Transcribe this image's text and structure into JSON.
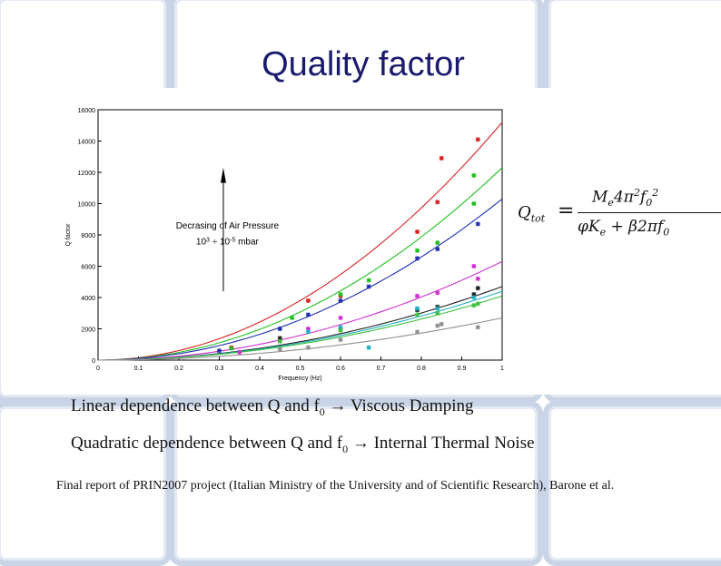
{
  "slide": {
    "title": "Quality factor",
    "formula": {
      "lhs": "Q",
      "lhs_sub": "tot",
      "numerator": "M",
      "numerator_html": "M_e 4π² f_0²",
      "denominator": "φK_e + β2πf_0"
    },
    "caption1": {
      "text": "Linear dependence between Q and f",
      "sub": "0",
      "tail": " → Viscous Damping"
    },
    "caption2": {
      "text": "Quadratic dependence between Q and f",
      "sub": "0",
      "tail": " → Internal Thermal Noise"
    },
    "reference": "Final report of PRIN2007 project (Italian Ministry of the University and of Scientific Research), Barone et al."
  },
  "colors": {
    "title": "#1a1a6e",
    "tile_border": "#c9d4e6"
  },
  "chart_data": {
    "type": "scatter",
    "xlabel": "Frequency (Hz)",
    "ylabel": "Q factor",
    "xlim": [
      0,
      1
    ],
    "ylim": [
      0,
      16000
    ],
    "xticks": [
      "0",
      "0.1",
      "0.2",
      "0.3",
      "0.4",
      "0.5",
      "0.6",
      "0.7",
      "0.8",
      "0.9",
      "1"
    ],
    "yticks": [
      "0",
      "2000",
      "4000",
      "6000",
      "8000",
      "10000",
      "12000",
      "14000",
      "16000"
    ],
    "grid": false,
    "annotation": {
      "line1": "Decrasing of Air Pressure",
      "line2_base": "10",
      "line2_exp1": "3",
      "line2_mid": " ÷ 10",
      "line2_exp2": "-5",
      "line2_tail": " mbar"
    },
    "series": [
      {
        "color": "#d62020",
        "curve_at_1": 15200,
        "points": [
          [
            0.33,
            800
          ],
          [
            0.52,
            3800
          ],
          [
            0.6,
            4100
          ],
          [
            0.79,
            8200
          ],
          [
            0.84,
            10100
          ],
          [
            0.85,
            12900
          ],
          [
            0.94,
            14100
          ]
        ]
      },
      {
        "color": "#20c020",
        "curve_at_1": 12300,
        "points": [
          [
            0.33,
            750
          ],
          [
            0.48,
            2700
          ],
          [
            0.6,
            4200
          ],
          [
            0.67,
            5100
          ],
          [
            0.79,
            7000
          ],
          [
            0.84,
            7500
          ],
          [
            0.93,
            10000
          ],
          [
            0.93,
            11800
          ]
        ]
      },
      {
        "color": "#2030b0",
        "curve_at_1": 10300,
        "points": [
          [
            0.3,
            600
          ],
          [
            0.45,
            2000
          ],
          [
            0.52,
            2900
          ],
          [
            0.6,
            3800
          ],
          [
            0.67,
            4700
          ],
          [
            0.79,
            6500
          ],
          [
            0.84,
            7100
          ],
          [
            0.94,
            8700
          ]
        ]
      },
      {
        "color": "#d030d0",
        "curve_at_1": 6300,
        "points": [
          [
            0.35,
            500
          ],
          [
            0.52,
            2000
          ],
          [
            0.6,
            2700
          ],
          [
            0.79,
            4100
          ],
          [
            0.84,
            4300
          ],
          [
            0.93,
            6000
          ],
          [
            0.94,
            5200
          ]
        ]
      },
      {
        "color": "#202020",
        "curve_at_1": 4700,
        "points": [
          [
            0.45,
            1400
          ],
          [
            0.6,
            2000
          ],
          [
            0.79,
            3200
          ],
          [
            0.84,
            3400
          ],
          [
            0.93,
            4200
          ],
          [
            0.94,
            4600
          ]
        ]
      },
      {
        "color": "#20b0c0",
        "curve_at_1": 4400,
        "points": [
          [
            0.52,
            1800
          ],
          [
            0.6,
            2100
          ],
          [
            0.67,
            800
          ],
          [
            0.79,
            3300
          ],
          [
            0.84,
            3300
          ],
          [
            0.93,
            4000
          ]
        ]
      },
      {
        "color": "#40c040",
        "curve_at_1": 4100,
        "points": [
          [
            0.45,
            1200
          ],
          [
            0.6,
            1900
          ],
          [
            0.79,
            2900
          ],
          [
            0.84,
            3000
          ],
          [
            0.93,
            3500
          ],
          [
            0.94,
            3600
          ]
        ]
      },
      {
        "color": "#909090",
        "curve_at_1": 2700,
        "points": [
          [
            0.45,
            700
          ],
          [
            0.52,
            800
          ],
          [
            0.6,
            1300
          ],
          [
            0.79,
            1800
          ],
          [
            0.84,
            2200
          ],
          [
            0.85,
            2300
          ],
          [
            0.94,
            2100
          ]
        ]
      }
    ]
  }
}
